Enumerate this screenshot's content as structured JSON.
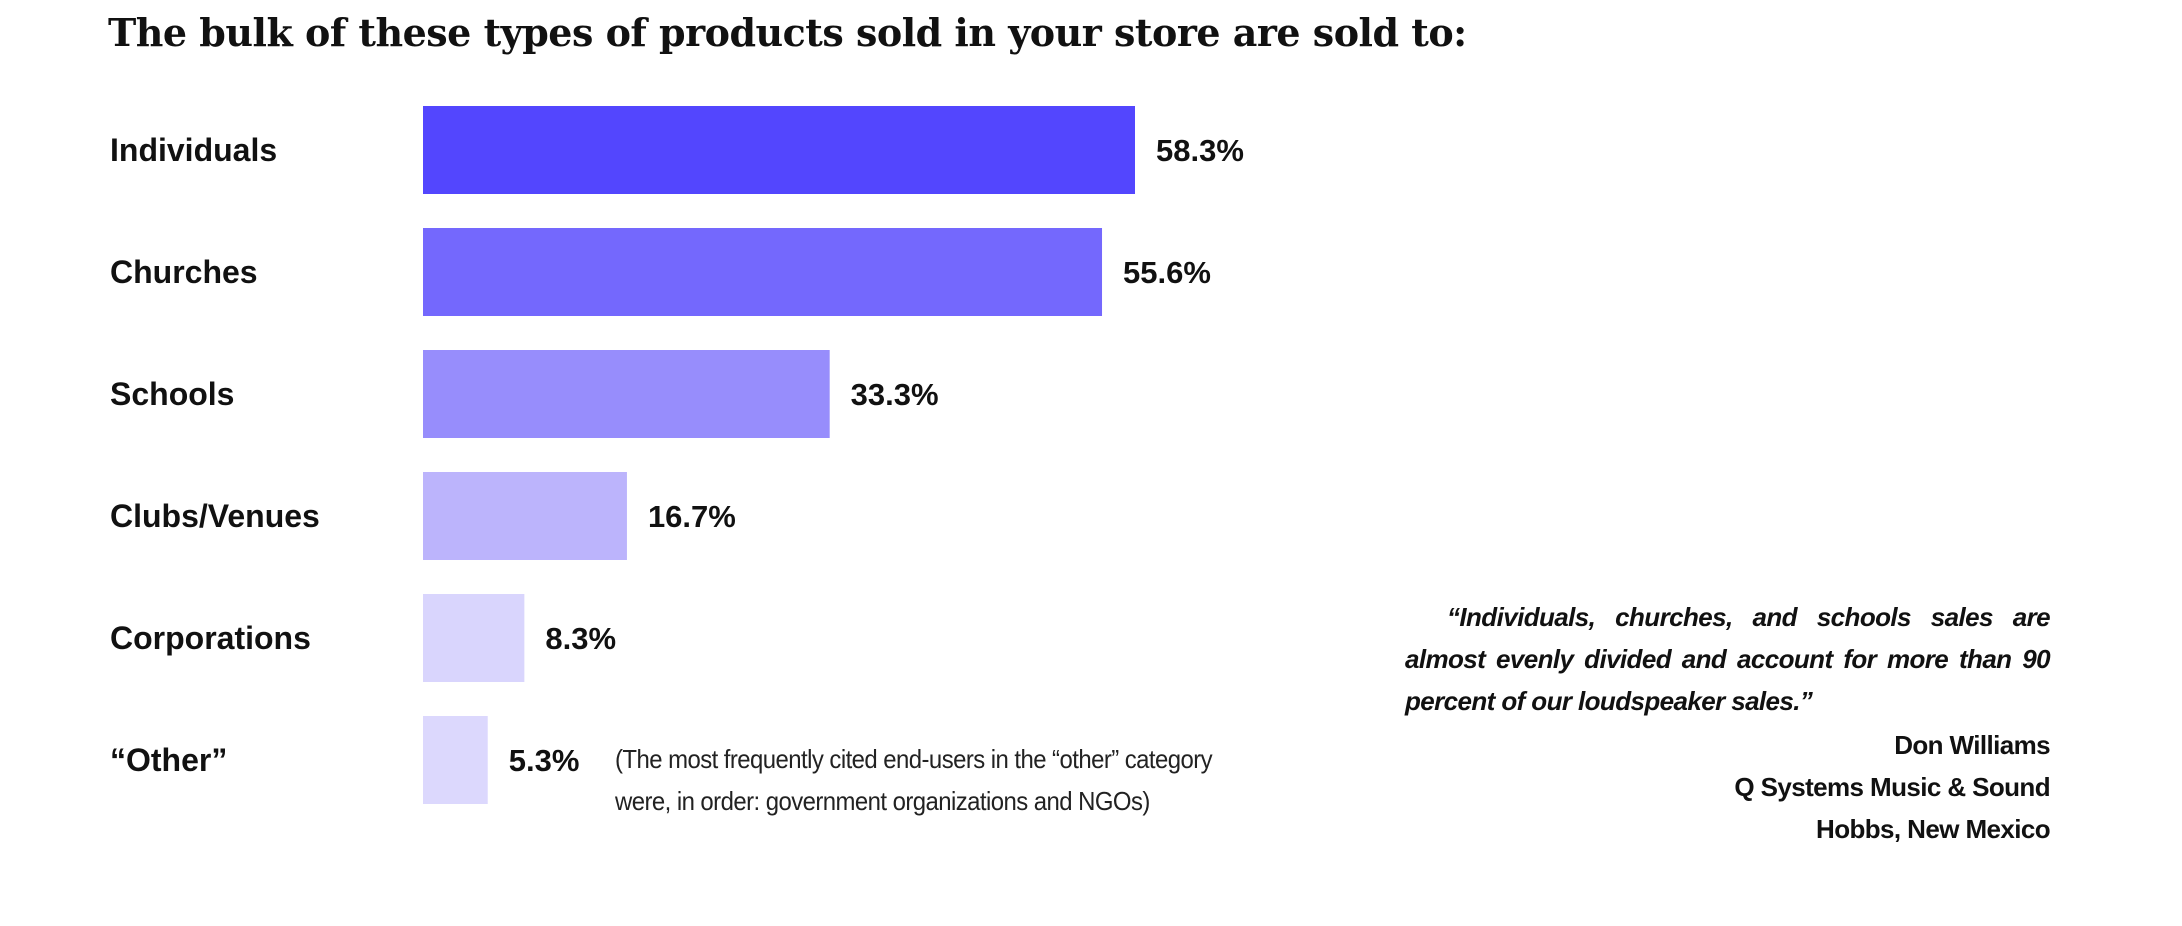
{
  "chart_data": {
    "type": "bar",
    "orientation": "horizontal",
    "title": "The bulk of these types of products sold in your store are sold to:",
    "categories": [
      "Individuals",
      "Churches",
      "Schools",
      "Clubs/Venues",
      "Corporations",
      "“Other”"
    ],
    "values": [
      58.3,
      55.6,
      33.3,
      16.7,
      8.3,
      5.3
    ],
    "value_labels": [
      "58.3%",
      "55.6%",
      "33.3%",
      "16.7%",
      "8.3%",
      "5.3%"
    ],
    "bar_colors": [
      "#5346fe",
      "#7468fd",
      "#978dfc",
      "#bcb4fc",
      "#d9d5fd",
      "#dcd8fd"
    ],
    "xlim": [
      0,
      60
    ],
    "grid": false,
    "legend": "none"
  },
  "footnote": {
    "line1": "(The most frequently cited end-users in the “other” category",
    "line2": "were, in order: government organizations and NGOs)"
  },
  "quote": {
    "text": "“Individuals, churches, and schools sales are almost evenly divided and account for more than 90 percent of our loudspeaker sales.”",
    "name": "Don Williams",
    "company": "Q Systems Music & Sound",
    "location": "Hobbs, New Mexico"
  }
}
